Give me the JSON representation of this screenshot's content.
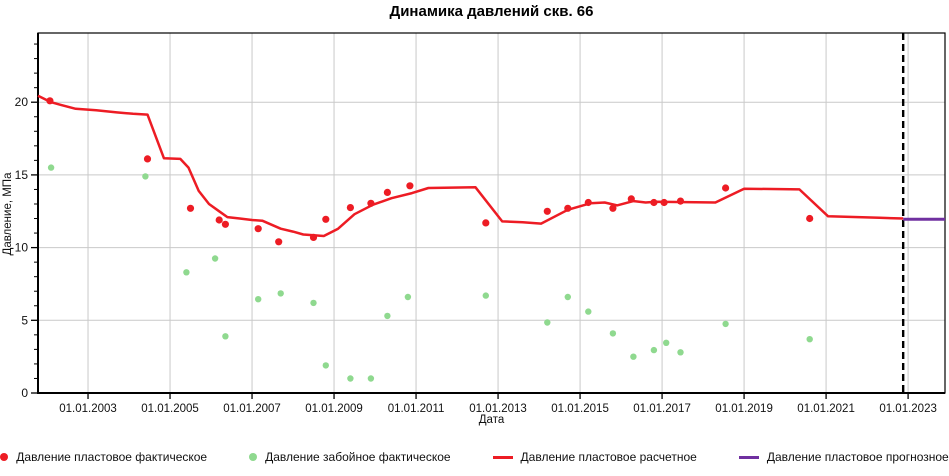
{
  "chart_data": {
    "type": "line",
    "title": "Динамика давлений скв. 66",
    "xlabel": "Дата",
    "ylabel": "Давление, МПа",
    "grid": true,
    "legend_position": "bottom",
    "xlim": [
      2001.78,
      2023.9
    ],
    "ylim": [
      0,
      24.76
    ],
    "x_ticks": [
      {
        "year": 2003,
        "label": "01.01.2003"
      },
      {
        "year": 2005,
        "label": "01.01.2005"
      },
      {
        "year": 2007,
        "label": "01.01.2007"
      },
      {
        "year": 2009,
        "label": "01.01.2009"
      },
      {
        "year": 2011,
        "label": "01.01.2011"
      },
      {
        "year": 2013,
        "label": "01.01.2013"
      },
      {
        "year": 2015,
        "label": "01.01.2015"
      },
      {
        "year": 2017,
        "label": "01.01.2017"
      },
      {
        "year": 2019,
        "label": "01.01.2019"
      },
      {
        "year": 2021,
        "label": "01.01.2021"
      },
      {
        "year": 2023,
        "label": "01.01.2023"
      }
    ],
    "y_major_ticks": [
      0,
      5,
      10,
      15,
      20
    ],
    "y_minor_step": 1,
    "forecast_divider": {
      "x": 2022.88,
      "color": "#000000",
      "dash": "7 4"
    },
    "colors": {
      "grid": "#c9c9c9",
      "frame": "#000000",
      "text": "#111111",
      "actual_red": "#ed1c24",
      "bottomhole_green": "#8fd98f",
      "forecast_purple": "#7030a0"
    },
    "series": [
      {
        "id": "plast-fact",
        "name": "Давление пластовое фактическое",
        "kind": "scatter",
        "color": "#ed1c24",
        "marker_radius": 3.6,
        "points": [
          [
            2002.07,
            20.1
          ],
          [
            2004.45,
            16.1
          ],
          [
            2005.5,
            12.7
          ],
          [
            2006.2,
            11.9
          ],
          [
            2006.35,
            11.6
          ],
          [
            2007.15,
            11.3
          ],
          [
            2007.65,
            10.4
          ],
          [
            2008.5,
            10.7
          ],
          [
            2008.8,
            11.95
          ],
          [
            2009.4,
            12.75
          ],
          [
            2009.9,
            13.05
          ],
          [
            2010.3,
            13.8
          ],
          [
            2010.85,
            14.25
          ],
          [
            2012.7,
            11.7
          ],
          [
            2014.2,
            12.5
          ],
          [
            2014.7,
            12.7
          ],
          [
            2015.2,
            13.1
          ],
          [
            2015.8,
            12.7
          ],
          [
            2016.25,
            13.35
          ],
          [
            2016.8,
            13.1
          ],
          [
            2017.05,
            13.1
          ],
          [
            2017.45,
            13.2
          ],
          [
            2018.55,
            14.1
          ],
          [
            2020.6,
            12.0
          ]
        ]
      },
      {
        "id": "zaboy-fact",
        "name": "Давление забойное фактическое",
        "kind": "scatter",
        "color": "#8fd98f",
        "marker_radius": 3.2,
        "points": [
          [
            2002.1,
            15.5
          ],
          [
            2004.4,
            14.9
          ],
          [
            2005.4,
            8.3
          ],
          [
            2006.1,
            9.25
          ],
          [
            2006.35,
            3.9
          ],
          [
            2007.15,
            6.45
          ],
          [
            2007.7,
            6.85
          ],
          [
            2008.5,
            6.2
          ],
          [
            2008.8,
            1.9
          ],
          [
            2009.4,
            1.0
          ],
          [
            2009.9,
            1.0
          ],
          [
            2010.3,
            5.3
          ],
          [
            2010.8,
            6.6
          ],
          [
            2012.7,
            6.7
          ],
          [
            2014.2,
            4.85
          ],
          [
            2014.7,
            6.6
          ],
          [
            2015.2,
            5.6
          ],
          [
            2015.8,
            4.1
          ],
          [
            2016.3,
            2.5
          ],
          [
            2016.8,
            2.95
          ],
          [
            2017.1,
            3.45
          ],
          [
            2017.45,
            2.8
          ],
          [
            2018.55,
            4.75
          ],
          [
            2020.6,
            3.7
          ]
        ]
      },
      {
        "id": "plast-calc",
        "name": "Давление пластовое расчетное",
        "kind": "line",
        "color": "#ed1c24",
        "width": 2.5,
        "points": [
          [
            2001.78,
            20.45
          ],
          [
            2002.1,
            20.0
          ],
          [
            2002.35,
            19.8
          ],
          [
            2002.7,
            19.55
          ],
          [
            2003.2,
            19.45
          ],
          [
            2003.7,
            19.3
          ],
          [
            2004.1,
            19.2
          ],
          [
            2004.45,
            19.15
          ],
          [
            2004.85,
            16.15
          ],
          [
            2005.25,
            16.1
          ],
          [
            2005.45,
            15.5
          ],
          [
            2005.7,
            13.9
          ],
          [
            2005.95,
            13.0
          ],
          [
            2006.2,
            12.5
          ],
          [
            2006.4,
            12.1
          ],
          [
            2006.7,
            12.0
          ],
          [
            2007.0,
            11.9
          ],
          [
            2007.25,
            11.85
          ],
          [
            2007.7,
            11.3
          ],
          [
            2008.0,
            11.1
          ],
          [
            2008.25,
            10.9
          ],
          [
            2008.75,
            10.8
          ],
          [
            2009.1,
            11.3
          ],
          [
            2009.5,
            12.3
          ],
          [
            2009.95,
            12.95
          ],
          [
            2010.4,
            13.4
          ],
          [
            2010.9,
            13.75
          ],
          [
            2011.3,
            14.1
          ],
          [
            2012.45,
            14.15
          ],
          [
            2013.1,
            11.8
          ],
          [
            2013.6,
            11.75
          ],
          [
            2014.05,
            11.65
          ],
          [
            2014.7,
            12.6
          ],
          [
            2015.25,
            13.05
          ],
          [
            2015.6,
            13.1
          ],
          [
            2015.9,
            12.9
          ],
          [
            2016.3,
            13.2
          ],
          [
            2016.6,
            13.1
          ],
          [
            2016.85,
            13.15
          ],
          [
            2018.3,
            13.1
          ],
          [
            2019.0,
            14.05
          ],
          [
            2020.35,
            14.0
          ],
          [
            2021.05,
            12.15
          ],
          [
            2022.3,
            12.05
          ],
          [
            2022.88,
            12.0
          ]
        ]
      },
      {
        "id": "plast-forecast",
        "name": "Давление пластовое прогнозное",
        "kind": "line",
        "color": "#7030a0",
        "width": 3,
        "points": [
          [
            2022.88,
            11.95
          ],
          [
            2023.9,
            11.95
          ]
        ]
      }
    ]
  }
}
